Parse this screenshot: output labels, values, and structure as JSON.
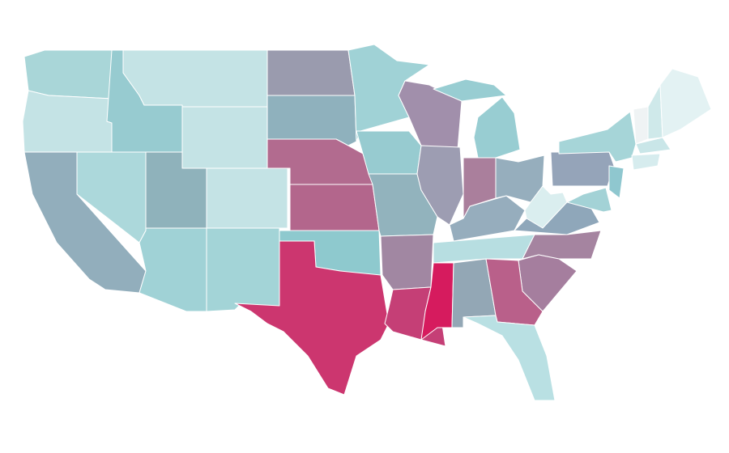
{
  "map": {
    "regions": [
      {
        "color": "#a9d6d8"
      },
      {
        "color": "#c4e3e5"
      },
      {
        "color": "#92aebc"
      },
      {
        "color": "#acd8db"
      },
      {
        "color": "#97cbd0"
      },
      {
        "color": "#c4e3e5"
      },
      {
        "color": "#c4e3e5"
      },
      {
        "color": "#8fb2bb"
      },
      {
        "color": "#c4e3e5"
      },
      {
        "color": "#a0d2d6"
      },
      {
        "color": "#a3d4d7"
      },
      {
        "color": "#9a9bae"
      },
      {
        "color": "#8fb1bd"
      },
      {
        "color": "#b26b8f"
      },
      {
        "color": "#b3668c"
      },
      {
        "color": "#8ec9ce"
      },
      {
        "color": "#cc366f"
      },
      {
        "color": "#a0d2d6"
      },
      {
        "color": "#97cbd0"
      },
      {
        "color": "#92b3bd"
      },
      {
        "color": "#a187a2"
      },
      {
        "color": "#c53f76"
      },
      {
        "color": "#a18fab"
      },
      {
        "color": "#9d9db2"
      },
      {
        "color": "#d61b5e"
      },
      {
        "color": "#93a7b5"
      },
      {
        "color": "#b7dee1"
      },
      {
        "color": "#96adbd"
      },
      {
        "color": "#aa7f9c"
      },
      {
        "color": "#98cdd2"
      },
      {
        "color": "#96aebd"
      },
      {
        "color": "#daeeef"
      },
      {
        "color": "#8fa7ba"
      },
      {
        "color": "#a584a0"
      },
      {
        "color": "#a57e9e"
      },
      {
        "color": "#b9608a"
      },
      {
        "color": "#b9e0e3"
      },
      {
        "color": "#95a4b9"
      },
      {
        "color": "#a6d5d8"
      },
      {
        "color": "#8fc7cf"
      },
      {
        "color": "#a3d2d6"
      },
      {
        "color": "#eff3f4"
      },
      {
        "color": "#cfe9ea"
      },
      {
        "color": "#e3f2f3"
      },
      {
        "color": "#c9e6e8"
      },
      {
        "color": "#d6ecee"
      }
    ]
  }
}
